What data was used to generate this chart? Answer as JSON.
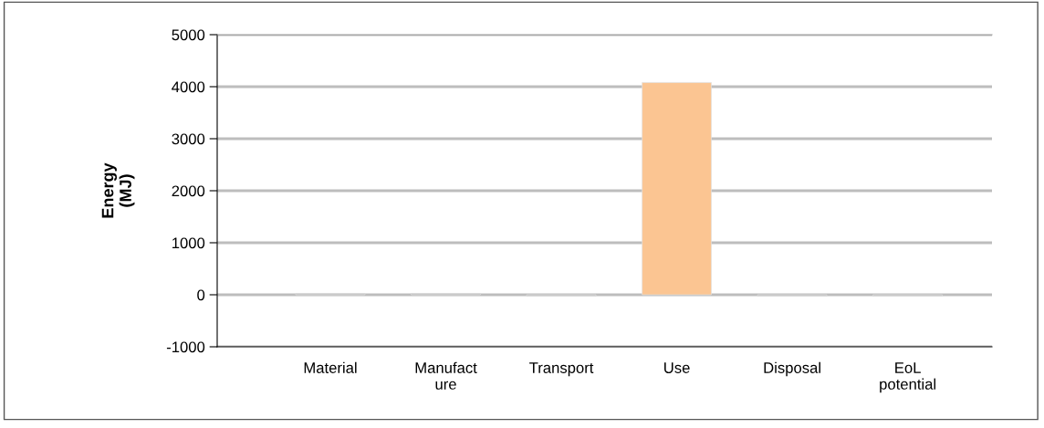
{
  "chart_data": {
    "type": "bar",
    "ylabel": "Energy\n(MJ)",
    "categories": [
      "Material",
      "Manufact\nure",
      "Transport",
      "Use",
      "Disposal",
      "EoL\npotential"
    ],
    "values": [
      20,
      20,
      -20,
      4080,
      -20,
      -20
    ],
    "colors": [
      "#b4b4b4",
      "#b4b4b4",
      "#b4b4b4",
      "#fbc592",
      "#b4b4b4",
      "#b4b4b4"
    ],
    "ylim": [
      -1000,
      5000
    ],
    "yticks": [
      -1000,
      0,
      1000,
      2000,
      3000,
      4000,
      5000
    ],
    "grid": "y"
  }
}
